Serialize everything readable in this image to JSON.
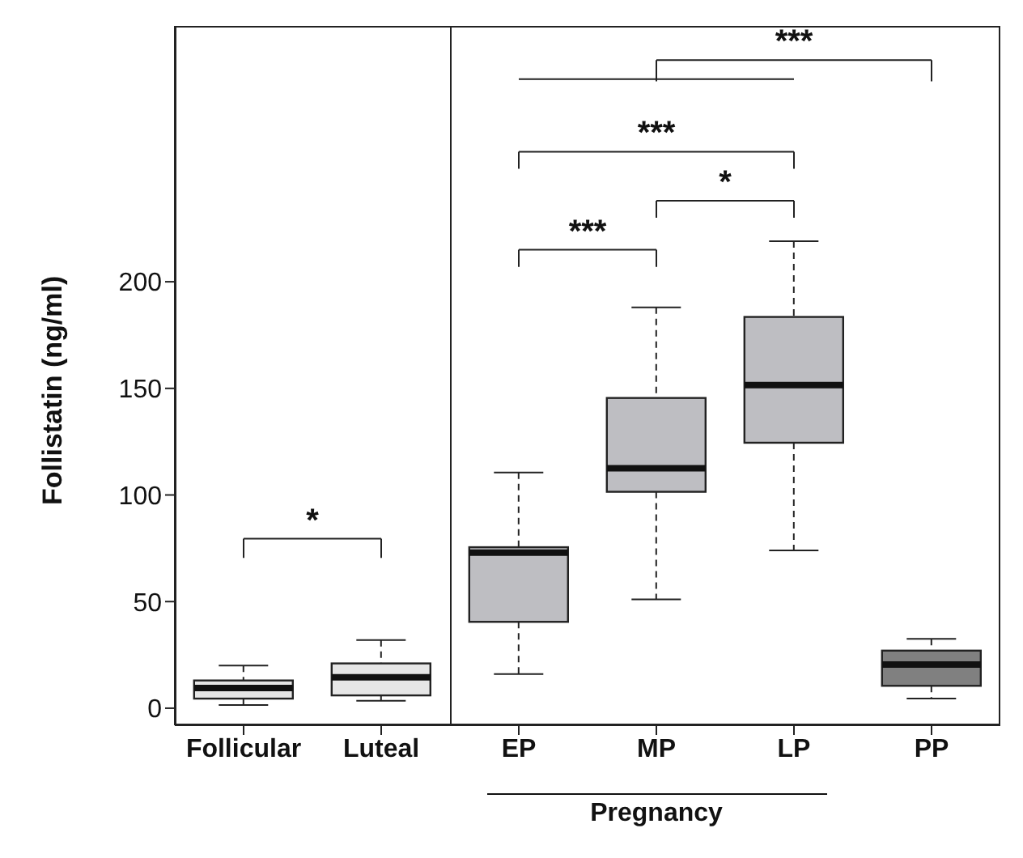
{
  "chart_data": {
    "type": "box",
    "ylabel": "Follistatin (ng/ml)",
    "categories": [
      "Follicular",
      "Luteal",
      "EP",
      "MP",
      "LP",
      "PP"
    ],
    "colors": [
      "#e6e6e6",
      "#e6e6e6",
      "#bebec2",
      "#bebec2",
      "#bebec2",
      "#808080"
    ],
    "boxes": [
      {
        "low": 1.5,
        "q1": 4.5,
        "median": 9.5,
        "q3": 13,
        "high": 20
      },
      {
        "low": 3.5,
        "q1": 6,
        "median": 14.5,
        "q3": 21,
        "high": 32
      },
      {
        "low": 16,
        "q1": 40.5,
        "median": 73,
        "q3": 75.5,
        "high": 110.5
      },
      {
        "low": 51,
        "q1": 101.5,
        "median": 112.5,
        "q3": 145.5,
        "high": 188
      },
      {
        "low": 74,
        "q1": 124.5,
        "median": 151.5,
        "q3": 183.5,
        "high": 219
      },
      {
        "low": 4.5,
        "q1": 10.5,
        "median": 20.5,
        "q3": 27,
        "high": 32.5
      }
    ],
    "ylim": [
      -8,
      320
    ],
    "yticks": [
      0,
      50,
      100,
      150,
      200
    ],
    "annotations": [
      "*",
      "***",
      "*",
      "***",
      "***",
      "Pregnancy"
    ]
  }
}
